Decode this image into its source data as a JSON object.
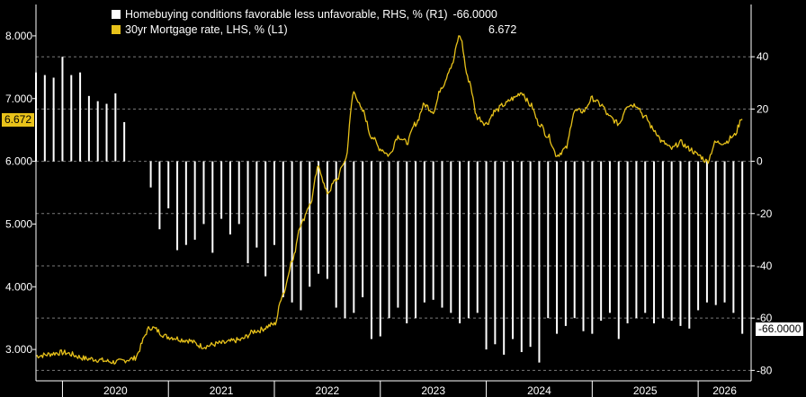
{
  "legend": {
    "bars_label": "Homebuying conditions favorable less unfavorable, RHS, % (R1)",
    "bars_value": "-66.0000",
    "line_label": "30yr Mortgage rate, LHS, % (L1)",
    "line_value": "6.672"
  },
  "badges": {
    "left": "6.672",
    "right": "-66.0000"
  },
  "colors": {
    "background": "#000000",
    "line": "#e8c21a",
    "bars": "#ffffff",
    "grid": "#7a7a7a"
  },
  "chart_data": {
    "type": "bar+line",
    "x_axis": {
      "tick_labels": [
        "2020",
        "2021",
        "2022",
        "2023",
        "2024",
        "2025",
        "2026"
      ],
      "range": [
        "2019-10-01",
        "2026-07-01"
      ]
    },
    "left_axis": {
      "tick_labels": [
        "3.000",
        "4.000",
        "5.000",
        "6.000",
        "7.000",
        "8.000"
      ],
      "range": [
        2.5,
        8.5
      ]
    },
    "right_axis": {
      "tick_labels": [
        "-80",
        "-60",
        "-40",
        "-20",
        "0",
        "20",
        "40"
      ],
      "range": [
        -84,
        60
      ]
    },
    "grid": "dashed horizontal",
    "series": [
      {
        "name": "Homebuying conditions favorable less unfavorable, RHS, % (R1)",
        "type": "bar",
        "axis": "right",
        "x": [
          "2019-10",
          "2019-11",
          "2019-12",
          "2020-01",
          "2020-02",
          "2020-03",
          "2020-04",
          "2020-05",
          "2020-06",
          "2020-07",
          "2020-08",
          "2020-09",
          "2020-10",
          "2020-11",
          "2020-12",
          "2021-01",
          "2021-02",
          "2021-03",
          "2021-04",
          "2021-05",
          "2021-06",
          "2021-07",
          "2021-08",
          "2021-09",
          "2021-10",
          "2021-11",
          "2021-12",
          "2022-01",
          "2022-02",
          "2022-03",
          "2022-04",
          "2022-05",
          "2022-06",
          "2022-07",
          "2022-08",
          "2022-09",
          "2022-10",
          "2022-11",
          "2022-12",
          "2023-01",
          "2023-02",
          "2023-03",
          "2023-04",
          "2023-05",
          "2023-06",
          "2023-07",
          "2023-08",
          "2023-09",
          "2023-10",
          "2023-11",
          "2023-12",
          "2024-01",
          "2024-02",
          "2024-03",
          "2024-04",
          "2024-05",
          "2024-06",
          "2024-07",
          "2024-08",
          "2024-09",
          "2024-10",
          "2024-11",
          "2024-12",
          "2025-01",
          "2025-02",
          "2025-03",
          "2025-04",
          "2025-05",
          "2025-06",
          "2025-07",
          "2025-08",
          "2025-09",
          "2025-10",
          "2025-11",
          "2025-12",
          "2026-01",
          "2026-02",
          "2026-03",
          "2026-04",
          "2026-05",
          "2026-06"
        ],
        "values": [
          34,
          33,
          32,
          40,
          33,
          34,
          25,
          23,
          22,
          26,
          15,
          null,
          null,
          -10,
          -26,
          -18,
          -34,
          -32,
          -30,
          -24,
          -35,
          -22,
          -28,
          -24,
          -39,
          -33,
          -44,
          -32,
          -52,
          -54,
          -57,
          -48,
          -43,
          -45,
          -56,
          -60,
          -58,
          -52,
          -68,
          -67,
          -60,
          -56,
          -62,
          -60,
          -54,
          -53,
          -56,
          -58,
          -62,
          -60,
          -58,
          -72,
          -70,
          -74,
          -68,
          -73,
          -71,
          -77,
          -60,
          -66,
          -63,
          -60,
          -65,
          -66,
          -61,
          -58,
          -68,
          -62,
          -60,
          -58,
          -62,
          -60,
          -61,
          -63,
          -64,
          -57,
          -54,
          -55,
          -54,
          -58,
          -66
        ],
        "color": "#ffffff"
      },
      {
        "name": "30yr Mortgage rate, LHS, % (L1)",
        "type": "line",
        "axis": "left",
        "x": [
          "2019-10",
          "2020-01",
          "2020-04",
          "2020-07",
          "2020-09",
          "2020-11",
          "2021-01",
          "2021-03",
          "2021-05",
          "2021-07",
          "2021-09",
          "2021-11",
          "2022-01",
          "2022-02",
          "2022-03",
          "2022-04",
          "2022-05",
          "2022-06",
          "2022-07",
          "2022-08",
          "2022-09",
          "2022-10",
          "2022-11",
          "2022-12",
          "2023-01",
          "2023-02",
          "2023-03",
          "2023-04",
          "2023-05",
          "2023-06",
          "2023-07",
          "2023-08",
          "2023-09",
          "2023-10",
          "2023-11",
          "2023-12",
          "2024-01",
          "2024-02",
          "2024-03",
          "2024-04",
          "2024-05",
          "2024-06",
          "2024-07",
          "2024-08",
          "2024-09",
          "2024-10",
          "2024-11",
          "2024-12",
          "2025-01",
          "2025-02",
          "2025-03",
          "2025-04",
          "2025-05",
          "2025-06",
          "2025-07",
          "2025-08",
          "2025-09",
          "2025-10",
          "2025-11",
          "2025-12",
          "2026-01",
          "2026-02",
          "2026-03",
          "2026-04",
          "2026-05",
          "2026-06"
        ],
        "values": [
          2.9,
          2.95,
          2.85,
          2.8,
          2.85,
          3.35,
          3.2,
          3.15,
          3.05,
          3.1,
          3.15,
          3.3,
          3.4,
          3.9,
          4.4,
          5.0,
          5.3,
          5.9,
          5.5,
          5.7,
          6.0,
          7.1,
          6.8,
          6.4,
          6.2,
          6.1,
          6.4,
          6.3,
          6.6,
          6.9,
          6.8,
          7.2,
          7.5,
          8.0,
          7.3,
          6.7,
          6.6,
          6.8,
          6.9,
          7.0,
          7.1,
          6.9,
          6.6,
          6.4,
          6.1,
          6.2,
          6.8,
          6.8,
          7.0,
          6.9,
          6.7,
          6.6,
          6.9,
          6.9,
          6.7,
          6.5,
          6.3,
          6.2,
          6.3,
          6.2,
          6.1,
          6.0,
          6.3,
          6.3,
          6.4,
          6.672
        ],
        "color": "#e8c21a"
      }
    ]
  }
}
